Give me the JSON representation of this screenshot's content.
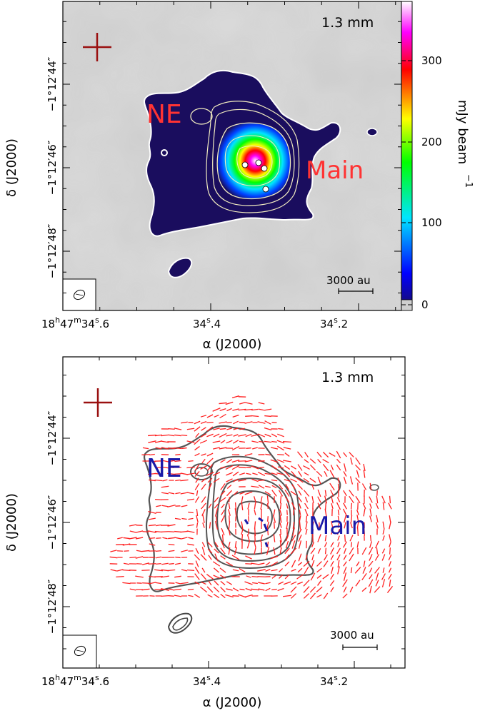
{
  "chart_data": [
    {
      "type": "heatmap",
      "wavelength_label": "1.3 mm",
      "xlabel": "α (J2000)",
      "ylabel": "δ (J2000)",
      "xticks": [
        {
          "value": 34.6,
          "label_main": "18",
          "sup1": "h",
          "label_mid": "47",
          "sup2": "m",
          "label_end": "34",
          "sup3": "s",
          "label_frac": ".6"
        },
        {
          "value": 34.4,
          "label_main": "34",
          "sup": "s",
          "label_frac": ".4"
        },
        {
          "value": 34.2,
          "label_main": "34",
          "sup": "s",
          "label_frac": ".2"
        }
      ],
      "yticks": [
        "−1°12′44″",
        "−1°12′46″",
        "−1°12′48″"
      ],
      "colorbar": {
        "label": "mJy beam",
        "label_exponent": "−1",
        "ticks": [
          "0",
          "100",
          "200",
          "300"
        ],
        "range": [
          0,
          370
        ],
        "colors": [
          "#1a0d5e",
          "#0000ff",
          "#00ffff",
          "#00ff00",
          "#ffff00",
          "#ff0000",
          "#ff00ff",
          "#ffffff"
        ]
      },
      "annotations": [
        {
          "text": "NE",
          "color": "#ff3333"
        },
        {
          "text": "Main",
          "color": "#ff3333"
        }
      ],
      "scalebar": "3000 au",
      "peaks": 4
    },
    {
      "type": "scatter",
      "wavelength_label": "1.3 mm",
      "xlabel": "α (J2000)",
      "ylabel": "δ (J2000)",
      "xticks": [
        {
          "value": 34.6,
          "label_main": "18",
          "sup1": "h",
          "label_mid": "47",
          "sup2": "m",
          "label_end": "34",
          "sup3": "s",
          "label_frac": ".6"
        },
        {
          "value": 34.4,
          "label_main": "34",
          "sup": "s",
          "label_frac": ".4"
        },
        {
          "value": 34.2,
          "label_main": "34",
          "sup": "s",
          "label_frac": ".2"
        }
      ],
      "yticks": [
        "−1°12′44″",
        "−1°12′46″",
        "−1°12′48″"
      ],
      "annotations": [
        {
          "text": "NE",
          "color": "#1a1aa8"
        },
        {
          "text": "Main",
          "color": "#1a1aa8"
        }
      ],
      "scalebar": "3000 au",
      "segment_color": "#ff2020"
    }
  ]
}
